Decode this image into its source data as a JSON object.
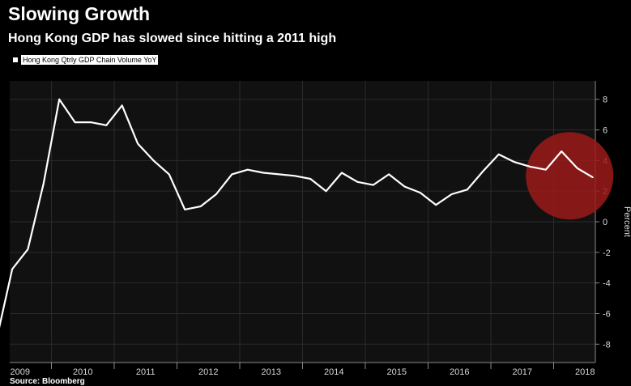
{
  "header": {
    "title": "Slowing Growth",
    "subtitle": "Hong Kong GDP has slowed since hitting a 2011 high"
  },
  "footer": {
    "source": "Source: Bloomberg"
  },
  "colors": {
    "background": "#000000",
    "line": "#ffffff",
    "highlight": "#9c1a1a"
  },
  "chart_data": {
    "type": "line",
    "title": "Slowing Growth",
    "subtitle": "Hong Kong GDP has slowed since hitting a 2011 high",
    "ylabel": "Percent",
    "xlabel": "",
    "ylim": [
      -9.2,
      9.2
    ],
    "yticks": [
      8,
      6,
      4,
      2,
      0,
      -2,
      -4,
      -6,
      -8
    ],
    "ytick_labels": [
      "8",
      "6",
      "4",
      "2",
      "0",
      "-2",
      "-4",
      "-6",
      "-8"
    ],
    "x_categories": [
      "2009",
      "2010",
      "2011",
      "2012",
      "2013",
      "2014",
      "2015",
      "2016",
      "2017",
      "2018"
    ],
    "grid": true,
    "legend": "top-left",
    "y_axis_position": "right",
    "series": [
      {
        "name": "Hong Kong Qtrly GDP Chain Volume YoY",
        "x": [
          "2009 Q1",
          "2009 Q2",
          "2009 Q3",
          "2009 Q4",
          "2010 Q1",
          "2010 Q2",
          "2010 Q3",
          "2010 Q4",
          "2011 Q1",
          "2011 Q2",
          "2011 Q3",
          "2011 Q4",
          "2012 Q1",
          "2012 Q2",
          "2012 Q3",
          "2012 Q4",
          "2013 Q1",
          "2013 Q2",
          "2013 Q3",
          "2013 Q4",
          "2014 Q1",
          "2014 Q2",
          "2014 Q3",
          "2014 Q4",
          "2015 Q1",
          "2015 Q2",
          "2015 Q3",
          "2015 Q4",
          "2016 Q1",
          "2016 Q2",
          "2016 Q3",
          "2016 Q4",
          "2017 Q1",
          "2017 Q2",
          "2017 Q3",
          "2017 Q4",
          "2018 Q1",
          "2018 Q2",
          "2018 Q3"
        ],
        "values": [
          -7.7,
          -3.1,
          -1.8,
          2.5,
          8.0,
          6.5,
          6.5,
          6.3,
          7.6,
          5.1,
          4.0,
          3.1,
          0.8,
          1.0,
          1.8,
          3.1,
          3.4,
          3.2,
          3.1,
          3.0,
          2.8,
          2.0,
          3.2,
          2.6,
          2.4,
          3.1,
          2.3,
          1.9,
          1.1,
          1.8,
          2.1,
          3.3,
          4.4,
          3.9,
          3.6,
          3.4,
          4.6,
          3.5,
          2.9
        ]
      }
    ],
    "annotations": [
      {
        "type": "highlight-circle",
        "x": "2018 Q1",
        "y": 3.0,
        "color": "#9c1a1a"
      }
    ]
  }
}
